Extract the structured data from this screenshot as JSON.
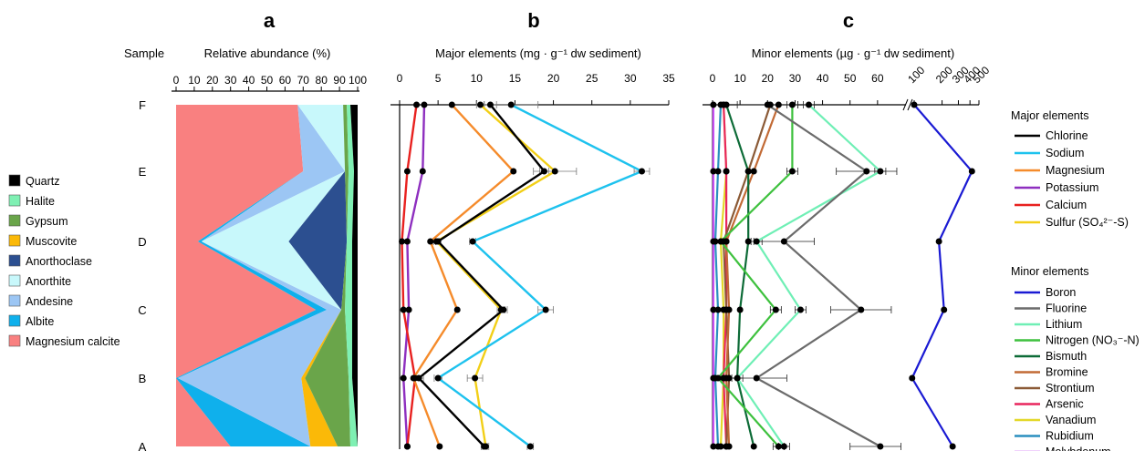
{
  "panel_letters": [
    "a",
    "b",
    "c"
  ],
  "row_header": "Sample",
  "samples": [
    "F",
    "E",
    "D",
    "C",
    "B",
    "A"
  ],
  "chart_data": [
    {
      "panel": "a",
      "type": "area",
      "title": "a",
      "xlabel": "Relative abundance (%)",
      "xlim": [
        0,
        100
      ],
      "xticks": [
        "0",
        "10",
        "20",
        "30",
        "40",
        "50",
        "60",
        "70",
        "80",
        "90",
        "100"
      ],
      "samples": [
        "A",
        "B",
        "C",
        "D",
        "E",
        "F"
      ],
      "series": [
        {
          "name": "Magnesium calcite",
          "color": "#f98080",
          "values": [
            30,
            0,
            77,
            12,
            70,
            67
          ]
        },
        {
          "name": "Albite",
          "color": "#0fb0ec",
          "values": [
            44,
            1,
            6,
            2,
            0,
            0
          ]
        },
        {
          "name": "Andesine",
          "color": "#9cc6f4",
          "values": [
            0,
            68,
            8,
            0,
            23,
            0
          ]
        },
        {
          "name": "Anorthite",
          "color": "#c8f8fb",
          "values": [
            0,
            0,
            0,
            48,
            0,
            25
          ]
        },
        {
          "name": "Anorthoclase",
          "color": "#2c4f90",
          "values": [
            0,
            0,
            0,
            32,
            0,
            0
          ]
        },
        {
          "name": "Muscovite",
          "color": "#fbb908",
          "values": [
            15,
            2,
            0,
            0,
            0,
            0
          ]
        },
        {
          "name": "Gypsum",
          "color": "#6aa54a",
          "values": [
            7,
            24,
            2,
            0,
            2,
            2
          ]
        },
        {
          "name": "Halite",
          "color": "#7ff0b3",
          "values": [
            4,
            2,
            4,
            3,
            3,
            2
          ]
        },
        {
          "name": "Quartz",
          "color": "#000000",
          "values": [
            0,
            3,
            3,
            3,
            2,
            4
          ]
        }
      ]
    },
    {
      "panel": "b",
      "type": "line",
      "title": "b",
      "xlabel": "Major elements (mg · g⁻¹ dw sediment)",
      "xlim": [
        0,
        35
      ],
      "xticks": [
        "0",
        "5",
        "10",
        "15",
        "20",
        "25",
        "30",
        "35"
      ],
      "samples": [
        "A",
        "B",
        "C",
        "D",
        "E",
        "F"
      ],
      "series": [
        {
          "name": "Chlorine",
          "color": "#000000",
          "values": [
            11.0,
            2.5,
            13.5,
            5.0,
            18.8,
            11.8
          ]
        },
        {
          "name": "Sodium",
          "color": "#1ec2ee",
          "values": [
            17.0,
            5.0,
            19.0,
            9.5,
            31.5,
            14.5
          ]
        },
        {
          "name": "Magnesium",
          "color": "#f58b2b",
          "values": [
            5.2,
            1.8,
            7.5,
            4.0,
            14.8,
            6.8
          ]
        },
        {
          "name": "Potassium",
          "color": "#8e2fbf",
          "values": [
            1.0,
            0.5,
            1.2,
            1.0,
            3.0,
            3.2
          ]
        },
        {
          "name": "Calcium",
          "color": "#e8211f",
          "values": [
            1.0,
            2.0,
            0.5,
            0.3,
            1.0,
            2.2
          ]
        },
        {
          "name": "Sulfur (SO₄²⁻-S)",
          "color": "#f2cf17",
          "values": [
            11.2,
            9.8,
            13.2,
            4.8,
            20.2,
            10.5
          ]
        }
      ],
      "errors": [
        {
          "name": "Sodium",
          "values": [
            0.4,
            0.5,
            1.0,
            0.4,
            1.0,
            3.5
          ]
        },
        {
          "name": "Sulfur (SO₄²⁻-S)",
          "values": [
            0.4,
            1.0,
            0.5,
            0.4,
            2.8,
            0.5
          ]
        },
        {
          "name": "Chlorine",
          "values": [
            0.4,
            0.6,
            0.5,
            0.3,
            0.6,
            0.8
          ]
        }
      ]
    },
    {
      "panel": "c",
      "type": "line",
      "title": "c",
      "xlabel": "Minor elements (µg · g⁻¹ dw sediment)",
      "xlim": [
        0,
        500
      ],
      "scale": "linear 0–70, broken, log 100–500",
      "xticks_linear": [
        "0",
        "10",
        "20",
        "30",
        "40",
        "50",
        "60"
      ],
      "xticks_log": [
        "100",
        "200",
        "300",
        "400",
        "500"
      ],
      "samples": [
        "A",
        "B",
        "C",
        "D",
        "E",
        "F"
      ],
      "series": [
        {
          "name": "Boron",
          "color": "#1a1ad3",
          "values": [
            260,
            95,
            210,
            185,
            420,
            100
          ]
        },
        {
          "name": "Fluorine",
          "color": "#6b6b6b",
          "values": [
            61,
            16,
            54,
            26,
            56,
            20
          ]
        },
        {
          "name": "Lithium",
          "color": "#6fefb5",
          "values": [
            26,
            9,
            32,
            16,
            61,
            35
          ]
        },
        {
          "name": "Nitrogen (NO₃⁻-N)",
          "color": "#3ec13e",
          "values": [
            24,
            2,
            23,
            3,
            29,
            29
          ]
        },
        {
          "name": "Bismuth",
          "color": "#0d6b37",
          "values": [
            15,
            9,
            10,
            13,
            13,
            5
          ]
        },
        {
          "name": "Bromine",
          "color": "#c26a35",
          "values": [
            6,
            5,
            6,
            5,
            15,
            24
          ]
        },
        {
          "name": "Strontium",
          "color": "#8b5a36",
          "values": [
            5,
            6,
            5,
            4,
            13,
            21
          ]
        },
        {
          "name": "Arsenic",
          "color": "#e8265d",
          "values": [
            5,
            4,
            5,
            5,
            5,
            4
          ]
        },
        {
          "name": "Vanadium",
          "color": "#e3d82a",
          "values": [
            3,
            4,
            4,
            3,
            5,
            4
          ]
        },
        {
          "name": "Rubidium",
          "color": "#2a8fbf",
          "values": [
            2,
            1,
            2,
            1,
            2,
            3
          ]
        },
        {
          "name": "Molybdenum",
          "color": "#c64df2",
          "values": [
            0.3,
            0.3,
            0.3,
            0.3,
            0.3,
            0.3
          ]
        }
      ]
    }
  ],
  "legend_a": [
    "Quartz",
    "Halite",
    "Gypsum",
    "Muscovite",
    "Anorthoclase",
    "Anorthite",
    "Andesine",
    "Albite",
    "Magnesium calcite"
  ],
  "legend_right": {
    "major_header": "Major elements",
    "major": [
      "Chlorine",
      "Sodium",
      "Magnesium",
      "Potassium",
      "Calcium",
      "Sulfur (SO₄²⁻-S)"
    ],
    "minor_header": "Minor elements",
    "minor": [
      "Boron",
      "Fluorine",
      "Lithium",
      "Nitrogen (NO₃⁻-N)",
      "Bismuth",
      "Bromine",
      "Strontium",
      "Arsenic",
      "Vanadium",
      "Rubidium",
      "Molybdenum"
    ]
  }
}
